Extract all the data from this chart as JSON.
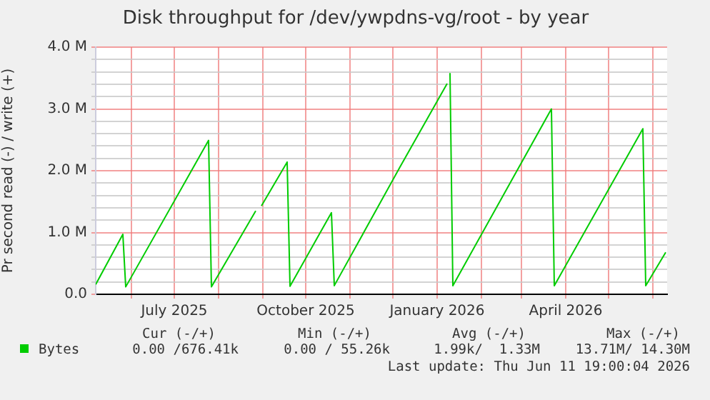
{
  "chart_data": {
    "type": "line",
    "title": "Disk throughput for /dev/ywpdns-vg/root - by year",
    "ylabel": "Pr second read (-) / write (+)",
    "x": [
      "2025-05-07",
      "2025-05-26",
      "2025-05-28",
      "2025-07-25",
      "2025-07-27",
      "2025-08-27",
      "2025-08-29",
      "2025-08-31",
      "2025-09-18",
      "2025-09-20",
      "2025-10-19",
      "2025-10-21",
      "2025-12-06",
      "2026-01-08",
      "2026-01-09",
      "2026-01-10",
      "2026-01-12",
      "2026-03-22",
      "2026-03-24",
      "2026-05-25",
      "2026-05-27",
      "2026-06-10"
    ],
    "series": [
      {
        "name": "Bytes",
        "color": "#00cc00",
        "values": [
          160000,
          970000,
          120000,
          2490000,
          120000,
          1350000,
          null,
          1430000,
          2140000,
          130000,
          1320000,
          140000,
          2060000,
          3410000,
          null,
          3580000,
          140000,
          3000000,
          140000,
          2680000,
          140000,
          680000
        ]
      }
    ],
    "xlim": [
      "2025-05-07",
      "2026-06-11"
    ],
    "xticks": [
      {
        "value": "2025-06-01",
        "label": null
      },
      {
        "value": "2025-07-01",
        "label": "July 2025"
      },
      {
        "value": "2025-08-01",
        "label": null
      },
      {
        "value": "2025-09-01",
        "label": null
      },
      {
        "value": "2025-10-01",
        "label": "October 2025"
      },
      {
        "value": "2025-11-01",
        "label": null
      },
      {
        "value": "2025-12-01",
        "label": null
      },
      {
        "value": "2026-01-01",
        "label": "January 2026"
      },
      {
        "value": "2026-02-01",
        "label": null
      },
      {
        "value": "2026-03-01",
        "label": null
      },
      {
        "value": "2026-04-01",
        "label": "April 2026"
      },
      {
        "value": "2026-05-01",
        "label": null
      },
      {
        "value": "2026-06-01",
        "label": null
      }
    ],
    "ylim": [
      0,
      4000000
    ],
    "yticks": [
      {
        "value": 0,
        "label": "0.0"
      },
      {
        "value": 200000,
        "label": null
      },
      {
        "value": 400000,
        "label": null
      },
      {
        "value": 600000,
        "label": null
      },
      {
        "value": 800000,
        "label": null
      },
      {
        "value": 1000000,
        "label": "1.0 M"
      },
      {
        "value": 1200000,
        "label": null
      },
      {
        "value": 1400000,
        "label": null
      },
      {
        "value": 1600000,
        "label": null
      },
      {
        "value": 1800000,
        "label": null
      },
      {
        "value": 2000000,
        "label": "2.0 M"
      },
      {
        "value": 2200000,
        "label": null
      },
      {
        "value": 2400000,
        "label": null
      },
      {
        "value": 2600000,
        "label": null
      },
      {
        "value": 2800000,
        "label": null
      },
      {
        "value": 3000000,
        "label": "3.0 M"
      },
      {
        "value": 3200000,
        "label": null
      },
      {
        "value": 3400000,
        "label": null
      },
      {
        "value": 3600000,
        "label": null
      },
      {
        "value": 3800000,
        "label": null
      },
      {
        "value": 4000000,
        "label": "4.0 M"
      }
    ],
    "grid": true,
    "legend": "bottom left",
    "marker": "none",
    "line_style": "solid",
    "annotations": [
      "Cur (-/+)",
      "Min (-/+)",
      "Avg (-/+)",
      "Max (-/+)",
      "0.00 /676.41k",
      "0.00 / 55.26k",
      "1.99k/  1.33M",
      "13.71M/ 14.30M",
      "Last update: Thu Jun 11 19:00:04 2026"
    ]
  }
}
